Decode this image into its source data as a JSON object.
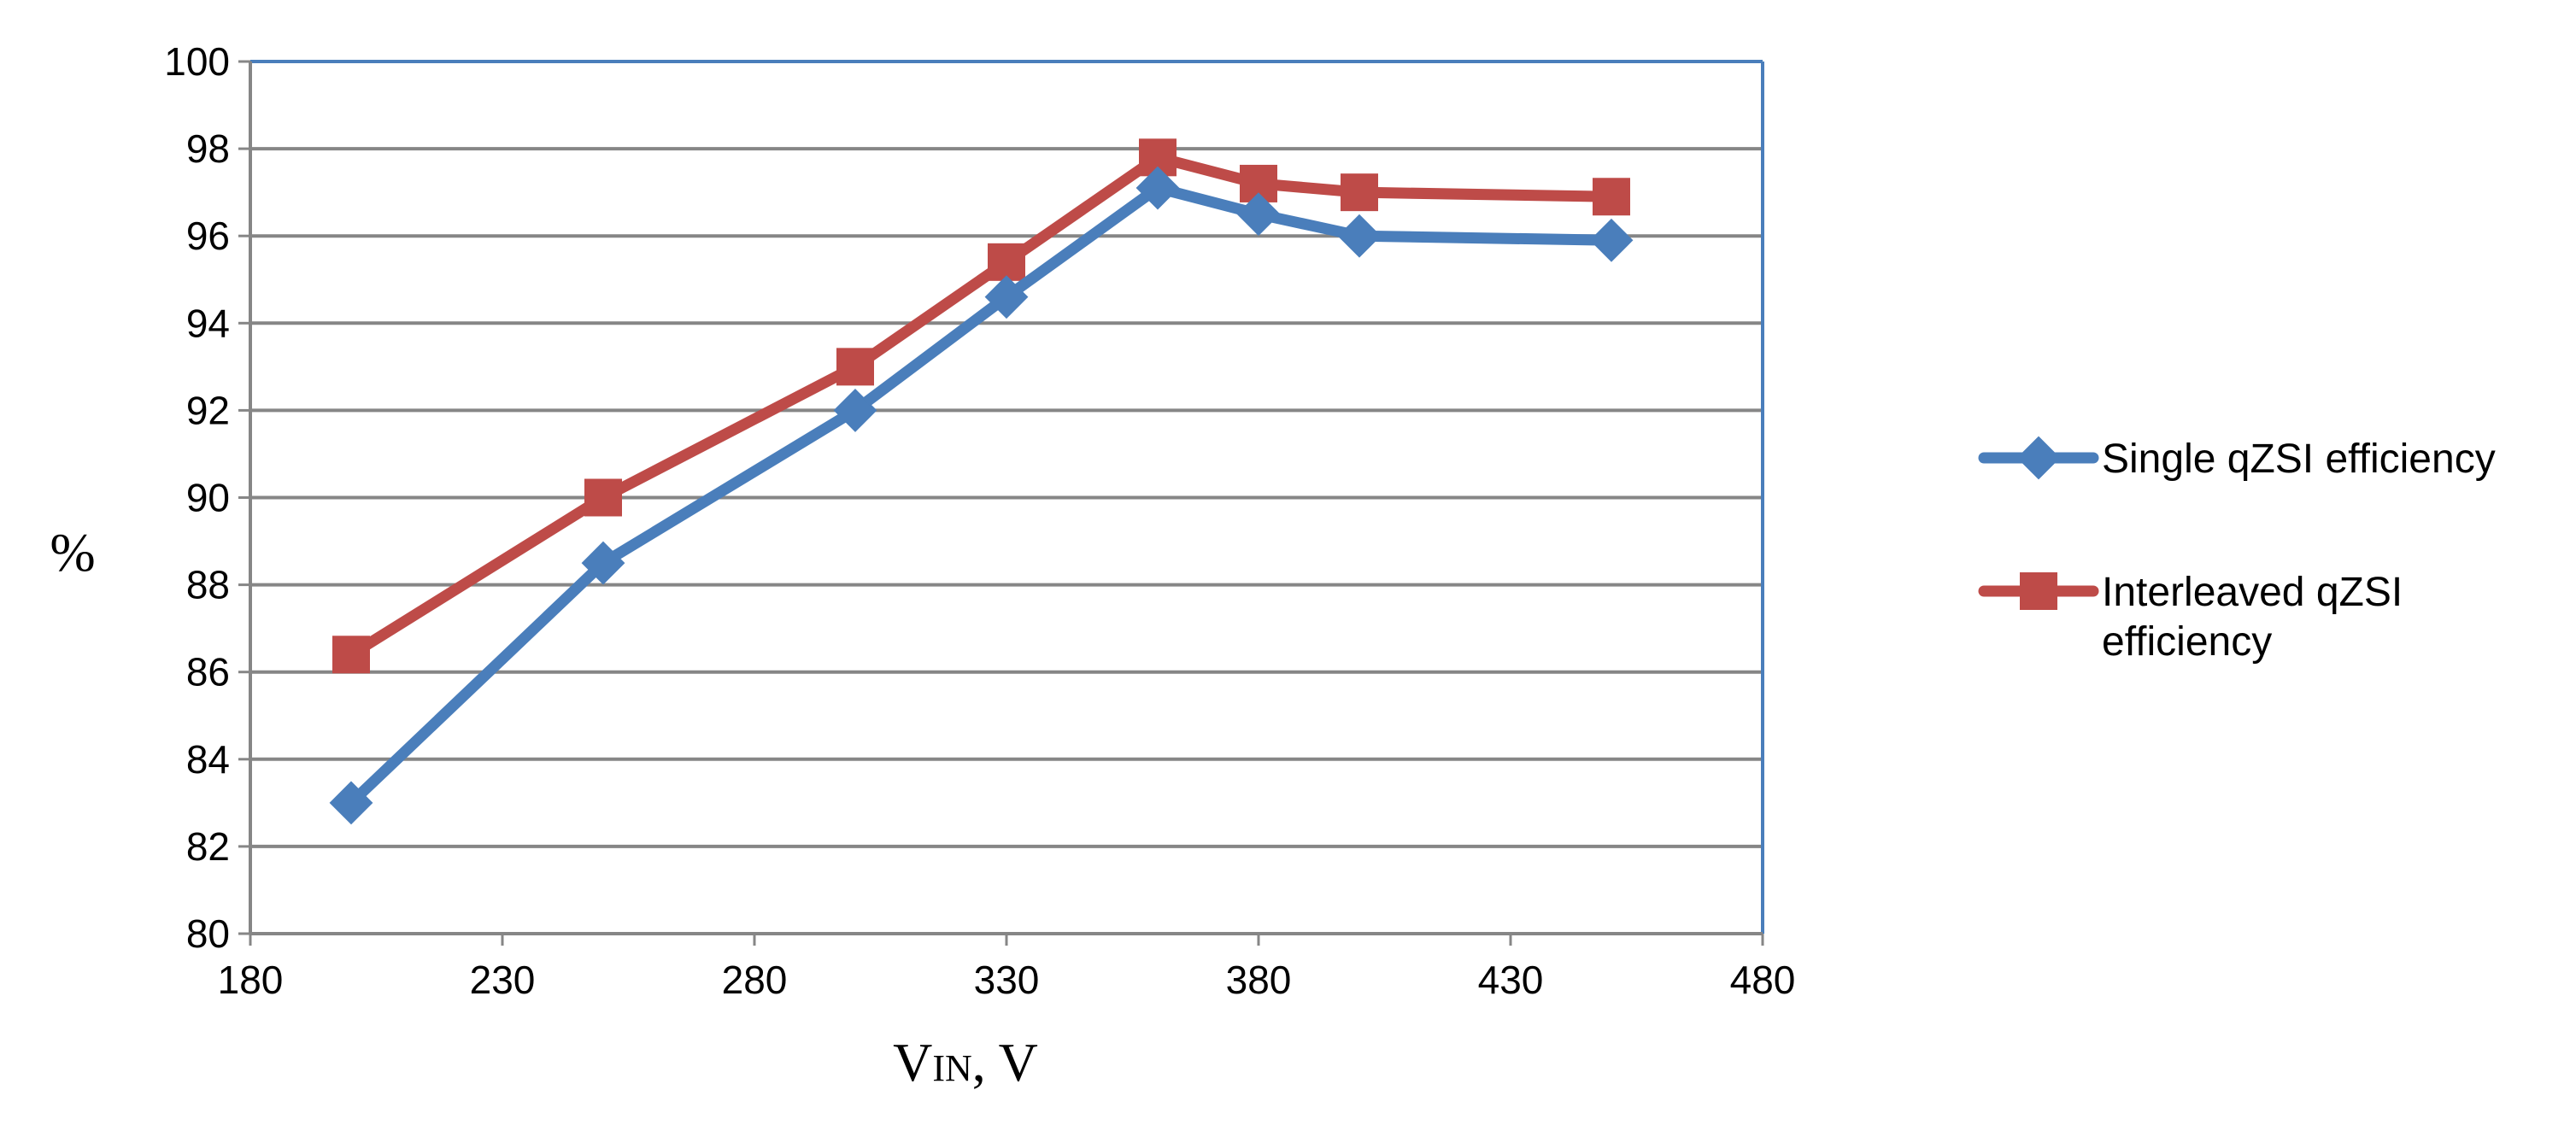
{
  "chart_data": {
    "type": "line",
    "title": "",
    "xlabel": {
      "main": "V",
      "subscript": "IN",
      "suffix": ", V"
    },
    "ylabel": "%",
    "xlim": [
      180,
      480
    ],
    "ylim": [
      80,
      100
    ],
    "xticks": [
      180,
      230,
      280,
      330,
      380,
      430,
      480
    ],
    "yticks": [
      80,
      82,
      84,
      86,
      88,
      90,
      92,
      94,
      96,
      98,
      100
    ],
    "grid": {
      "horizontal": true,
      "vertical": false
    },
    "legend_position": "right",
    "series": [
      {
        "name_lines": [
          "Single qZSI efficiency"
        ],
        "marker": "diamond",
        "color": "#4a7ebb",
        "x": [
          200,
          250,
          300,
          330,
          360,
          380,
          400,
          450
        ],
        "y": [
          83.0,
          88.5,
          92.0,
          94.6,
          97.1,
          96.5,
          96.0,
          95.9
        ]
      },
      {
        "name_lines": [
          "Interleaved qZSI",
          "efficiency"
        ],
        "marker": "square",
        "color": "#be4b48",
        "x": [
          200,
          250,
          300,
          330,
          360,
          380,
          400,
          450
        ],
        "y": [
          86.4,
          90.0,
          93.0,
          95.4,
          97.8,
          97.2,
          97.0,
          96.9
        ]
      }
    ],
    "colors": {
      "grid": "#868686",
      "plot_border": "#4a7ebb",
      "axis": "#868686"
    }
  }
}
